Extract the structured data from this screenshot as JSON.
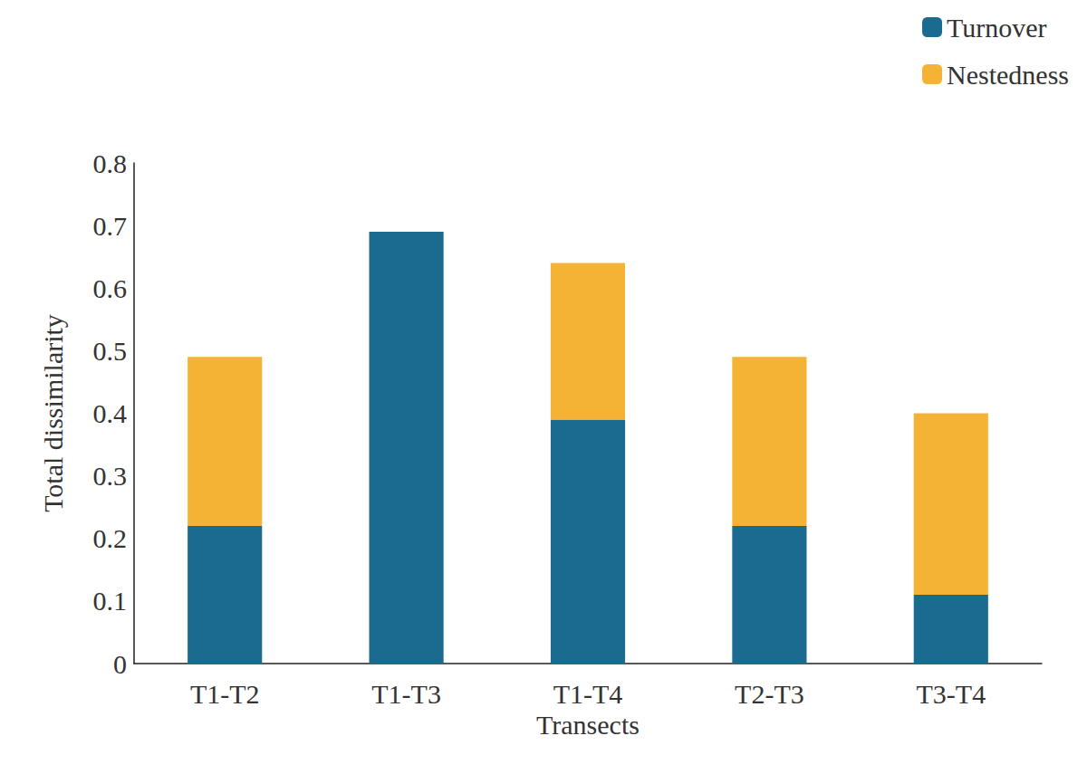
{
  "chart_data": {
    "type": "bar",
    "stacked": true,
    "x_label": "Transects",
    "y_label": "Total dissimilarity",
    "categories": [
      "T1-T2",
      "T1-T3",
      "T1-T4",
      "T2-T3",
      "T3-T4"
    ],
    "series": [
      {
        "name": "Turnover",
        "color": "#1b6a8f",
        "values": [
          0.22,
          0.69,
          0.39,
          0.22,
          0.11
        ]
      },
      {
        "name": "Nestedness",
        "color": "#f5b335",
        "values": [
          0.27,
          0,
          0.25,
          0.27,
          0.29
        ]
      }
    ],
    "ylim": [
      0,
      0.8
    ],
    "yticks": [
      0,
      0.1,
      0.2,
      0.3,
      0.4,
      0.5,
      0.6,
      0.7,
      0.8
    ],
    "grid": false,
    "legend": "upper right"
  }
}
